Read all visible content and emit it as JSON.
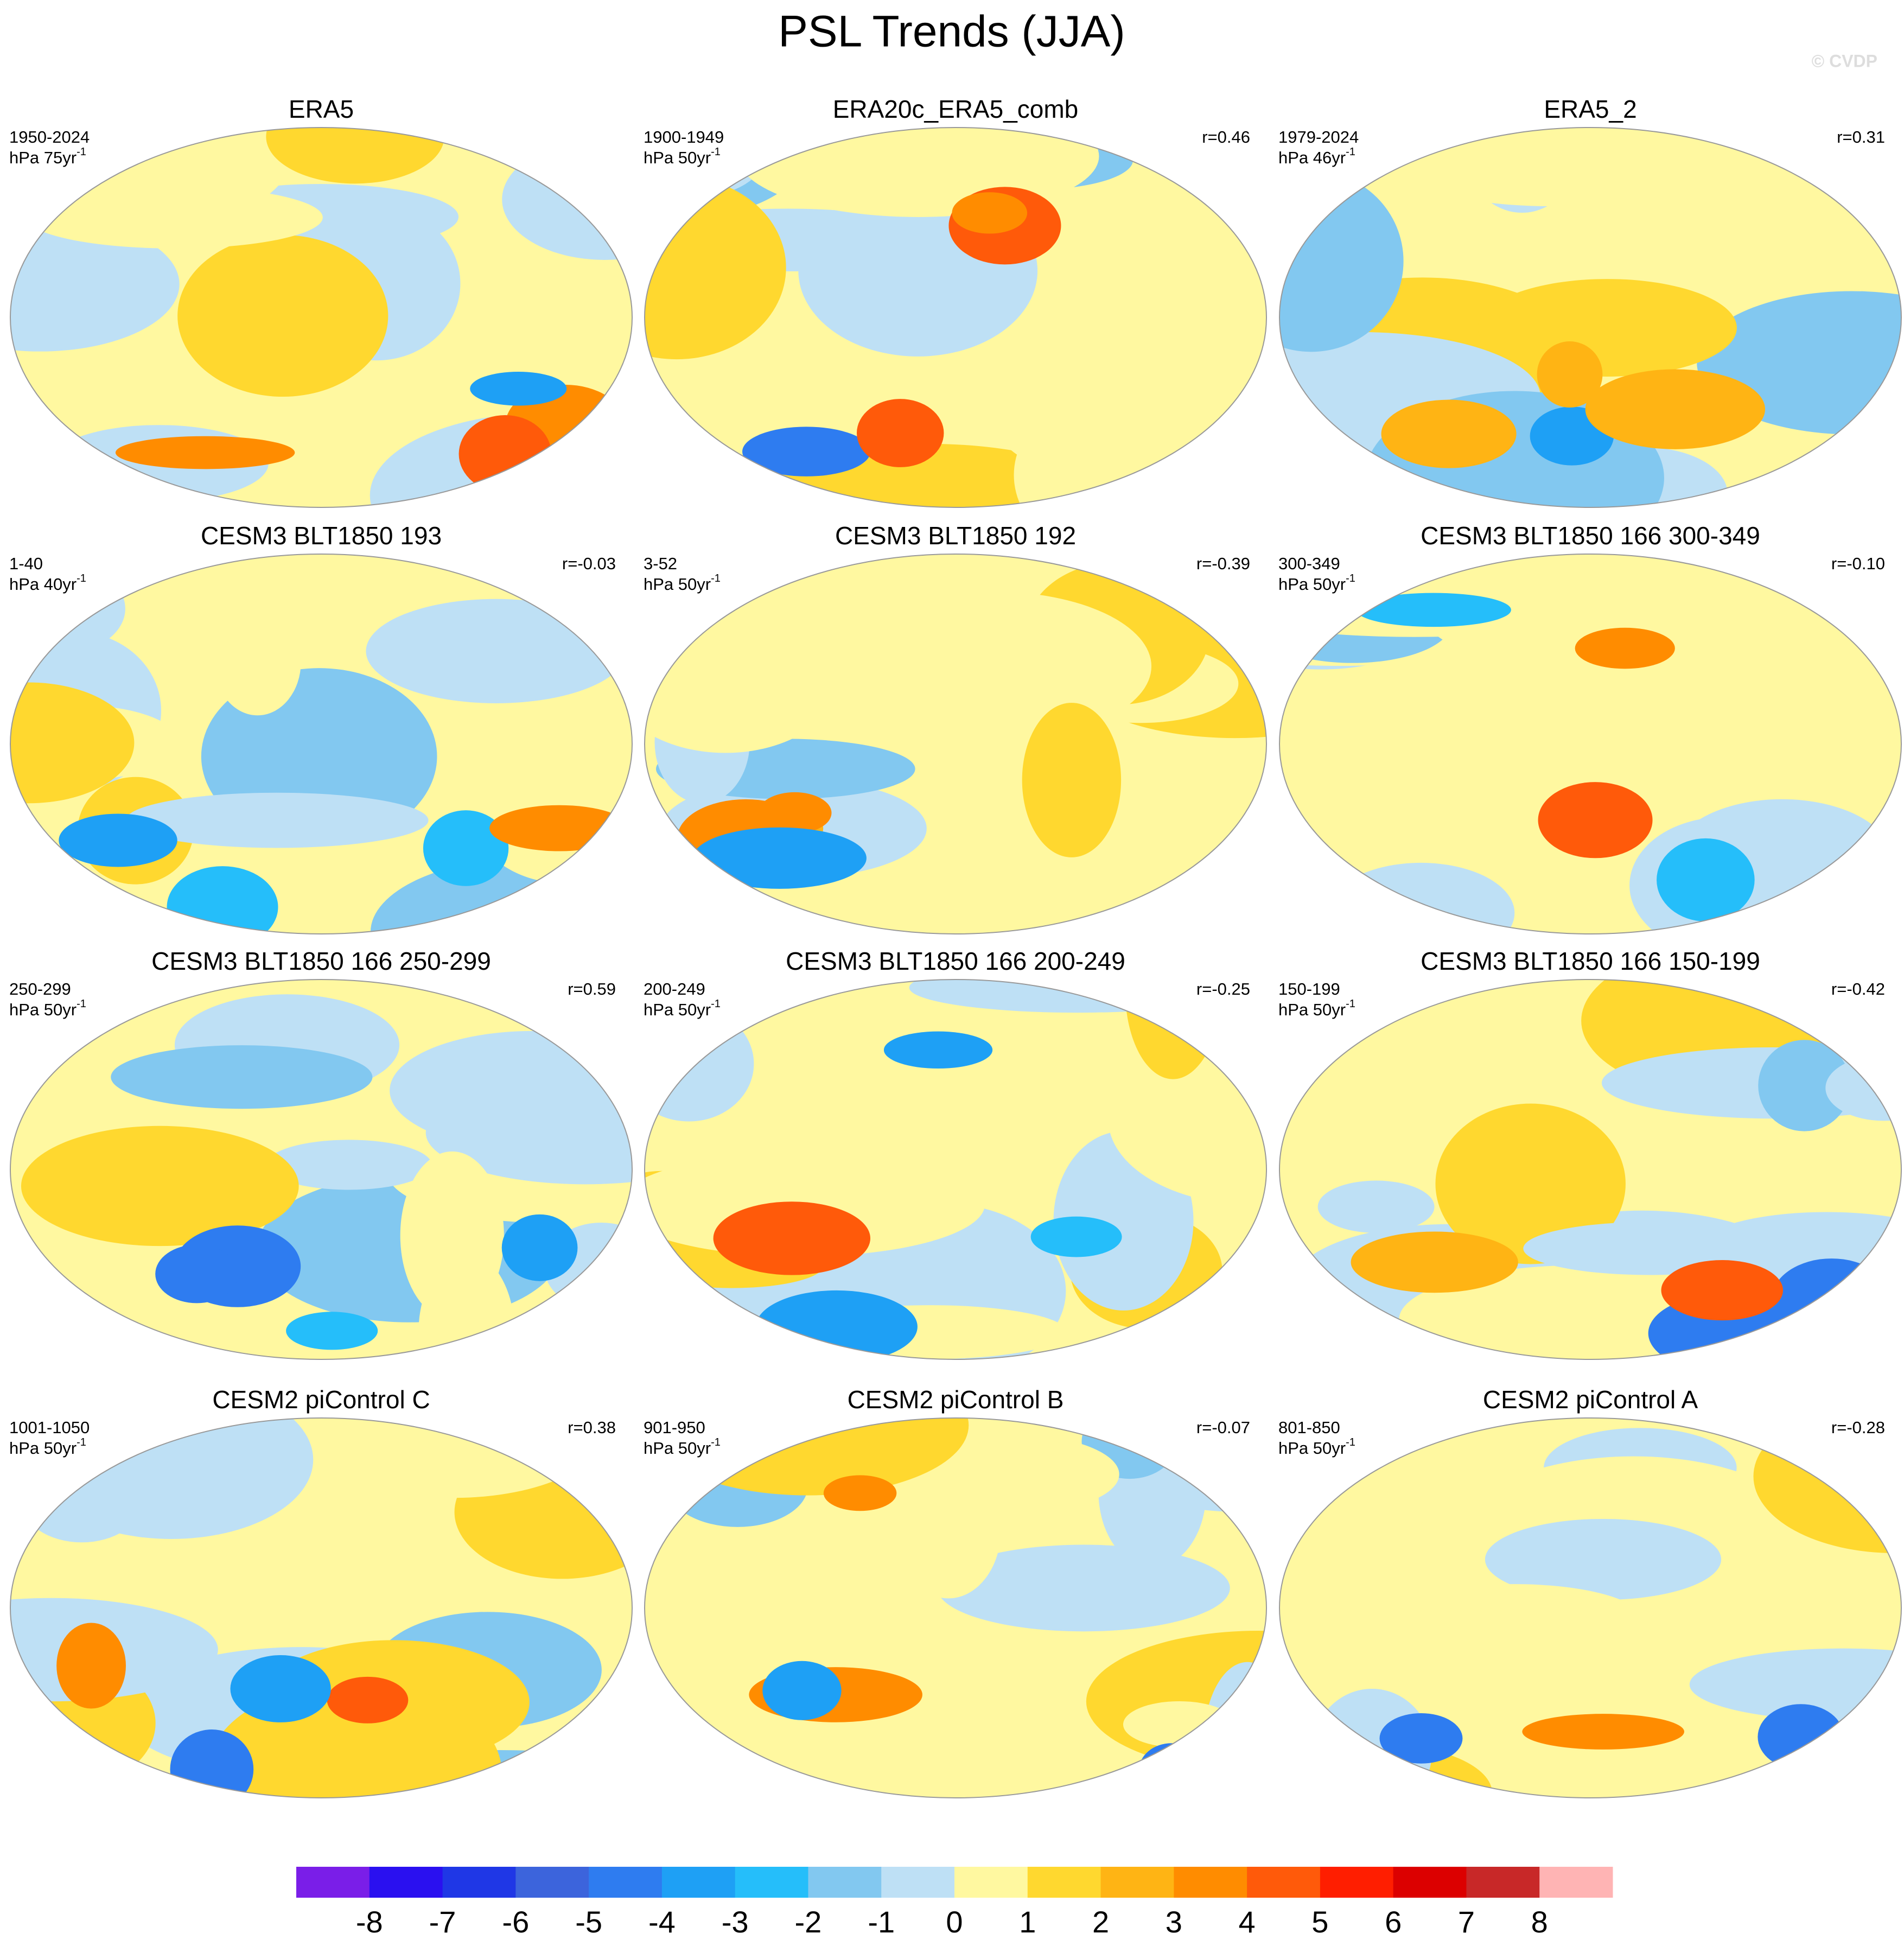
{
  "title": "PSL Trends (JJA)",
  "watermark": "© CVDP",
  "panels": [
    {
      "title": "ERA5",
      "period": "1950-2024",
      "units": "hPa 75yr",
      "units_sup": "-1",
      "r": null
    },
    {
      "title": "ERA20c_ERA5_comb",
      "period": "1900-1949",
      "units": "hPa 50yr",
      "units_sup": "-1",
      "r": "r=0.46"
    },
    {
      "title": "ERA5_2",
      "period": "1979-2024",
      "units": "hPa 46yr",
      "units_sup": "-1",
      "r": "r=0.31"
    },
    {
      "title": "CESM3 BLT1850 193",
      "period": "1-40",
      "units": "hPa 40yr",
      "units_sup": "-1",
      "r": "r=-0.03"
    },
    {
      "title": "CESM3 BLT1850 192",
      "period": "3-52",
      "units": "hPa 50yr",
      "units_sup": "-1",
      "r": "r=-0.39"
    },
    {
      "title": "CESM3 BLT1850 166 300-349",
      "period": "300-349",
      "units": "hPa 50yr",
      "units_sup": "-1",
      "r": "r=-0.10"
    },
    {
      "title": "CESM3 BLT1850 166 250-299",
      "period": "250-299",
      "units": "hPa 50yr",
      "units_sup": "-1",
      "r": "r=0.59"
    },
    {
      "title": "CESM3 BLT1850 166 200-249",
      "period": "200-249",
      "units": "hPa 50yr",
      "units_sup": "-1",
      "r": "r=-0.25"
    },
    {
      "title": "CESM3 BLT1850 166 150-199",
      "period": "150-199",
      "units": "hPa 50yr",
      "units_sup": "-1",
      "r": "r=-0.42"
    },
    {
      "title": "CESM2 piControl C",
      "period": "1001-1050",
      "units": "hPa 50yr",
      "units_sup": "-1",
      "r": "r=0.38"
    },
    {
      "title": "CESM2 piControl B",
      "period": "901-950",
      "units": "hPa 50yr",
      "units_sup": "-1",
      "r": "r=-0.07"
    },
    {
      "title": "CESM2 piControl A",
      "period": "801-850",
      "units": "hPa 50yr",
      "units_sup": "-1",
      "r": "r=-0.28"
    }
  ],
  "colorbar": {
    "colors": [
      "#7a1ee8",
      "#2a10f0",
      "#1f37e6",
      "#3c64dc",
      "#2e7cf0",
      "#1ea0f5",
      "#25befa",
      "#82c8f0",
      "#bee0f5",
      "#fff8a0",
      "#ffd82f",
      "#ffb414",
      "#ff8c00",
      "#ff5a0a",
      "#ff1e00",
      "#dc0000",
      "#c82828",
      "#ffb4b4"
    ],
    "ticks": [
      -8,
      -7,
      -6,
      -5,
      -4,
      -3,
      -2,
      -1,
      0,
      1,
      2,
      3,
      4,
      5,
      6,
      7,
      8
    ]
  }
}
